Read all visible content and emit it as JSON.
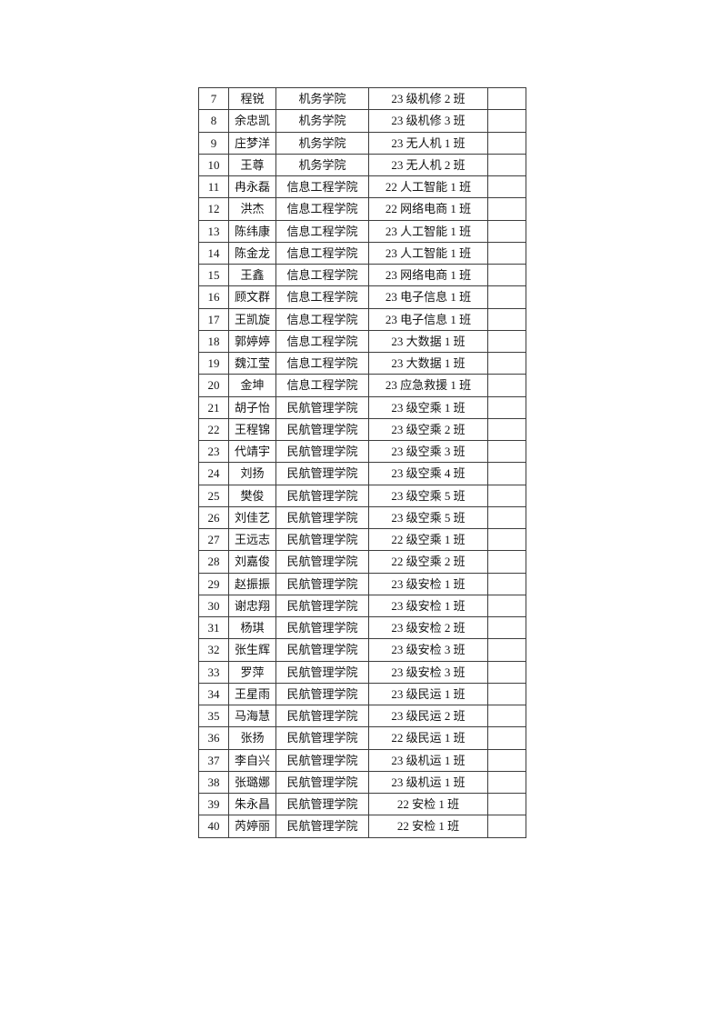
{
  "document": {
    "background_color": "#ffffff",
    "text_color": "#141414",
    "table_border_color": "#3d3d3d"
  },
  "table": {
    "columns": [
      "no",
      "name",
      "college",
      "class",
      "blank"
    ],
    "rows": [
      {
        "no": "7",
        "name": "程锐",
        "college": "机务学院",
        "class": "23 级机修 2 班",
        "blank": ""
      },
      {
        "no": "8",
        "name": "余忠凯",
        "college": "机务学院",
        "class": "23 级机修 3 班",
        "blank": ""
      },
      {
        "no": "9",
        "name": "庄梦洋",
        "college": "机务学院",
        "class": "23 无人机 1 班",
        "blank": ""
      },
      {
        "no": "10",
        "name": "王尊",
        "college": "机务学院",
        "class": "23 无人机 2 班",
        "blank": ""
      },
      {
        "no": "11",
        "name": "冉永磊",
        "college": "信息工程学院",
        "class": "22 人工智能 1 班",
        "blank": ""
      },
      {
        "no": "12",
        "name": "洪杰",
        "college": "信息工程学院",
        "class": "22 网络电商 1 班",
        "blank": ""
      },
      {
        "no": "13",
        "name": "陈纬康",
        "college": "信息工程学院",
        "class": "23 人工智能 1 班",
        "blank": ""
      },
      {
        "no": "14",
        "name": "陈金龙",
        "college": "信息工程学院",
        "class": "23 人工智能 1 班",
        "blank": ""
      },
      {
        "no": "15",
        "name": "王鑫",
        "college": "信息工程学院",
        "class": "23 网络电商 1 班",
        "blank": ""
      },
      {
        "no": "16",
        "name": "顾文群",
        "college": "信息工程学院",
        "class": "23 电子信息 1 班",
        "blank": ""
      },
      {
        "no": "17",
        "name": "王凯旋",
        "college": "信息工程学院",
        "class": "23 电子信息 1 班",
        "blank": ""
      },
      {
        "no": "18",
        "name": "郭婷婷",
        "college": "信息工程学院",
        "class": "23 大数据 1 班",
        "blank": ""
      },
      {
        "no": "19",
        "name": "魏江莹",
        "college": "信息工程学院",
        "class": "23 大数据 1 班",
        "blank": ""
      },
      {
        "no": "20",
        "name": "金坤",
        "college": "信息工程学院",
        "class": "23 应急救援 1 班",
        "blank": ""
      },
      {
        "no": "21",
        "name": "胡子怡",
        "college": "民航管理学院",
        "class": "23 级空乘 1 班",
        "blank": ""
      },
      {
        "no": "22",
        "name": "王程锦",
        "college": "民航管理学院",
        "class": "23 级空乘 2 班",
        "blank": ""
      },
      {
        "no": "23",
        "name": "代靖宇",
        "college": "民航管理学院",
        "class": "23 级空乘 3 班",
        "blank": ""
      },
      {
        "no": "24",
        "name": "刘扬",
        "college": "民航管理学院",
        "class": "23 级空乘 4 班",
        "blank": ""
      },
      {
        "no": "25",
        "name": "樊俊",
        "college": "民航管理学院",
        "class": "23 级空乘 5 班",
        "blank": ""
      },
      {
        "no": "26",
        "name": "刘佳艺",
        "college": "民航管理学院",
        "class": "23 级空乘 5 班",
        "blank": ""
      },
      {
        "no": "27",
        "name": "王远志",
        "college": "民航管理学院",
        "class": "22 级空乘 1 班",
        "blank": ""
      },
      {
        "no": "28",
        "name": "刘嘉俊",
        "college": "民航管理学院",
        "class": "22 级空乘 2 班",
        "blank": ""
      },
      {
        "no": "29",
        "name": "赵振振",
        "college": "民航管理学院",
        "class": "23 级安检 1 班",
        "blank": ""
      },
      {
        "no": "30",
        "name": "谢忠翔",
        "college": "民航管理学院",
        "class": "23 级安检 1 班",
        "blank": ""
      },
      {
        "no": "31",
        "name": "杨琪",
        "college": "民航管理学院",
        "class": "23 级安检 2 班",
        "blank": ""
      },
      {
        "no": "32",
        "name": "张生辉",
        "college": "民航管理学院",
        "class": "23 级安检 3 班",
        "blank": ""
      },
      {
        "no": "33",
        "name": "罗萍",
        "college": "民航管理学院",
        "class": "23 级安检 3 班",
        "blank": ""
      },
      {
        "no": "34",
        "name": "王星雨",
        "college": "民航管理学院",
        "class": "23 级民运 1 班",
        "blank": ""
      },
      {
        "no": "35",
        "name": "马海慧",
        "college": "民航管理学院",
        "class": "23 级民运 2 班",
        "blank": ""
      },
      {
        "no": "36",
        "name": "张扬",
        "college": "民航管理学院",
        "class": "22 级民运 1 班",
        "blank": ""
      },
      {
        "no": "37",
        "name": "李自兴",
        "college": "民航管理学院",
        "class": "23 级机运 1 班",
        "blank": ""
      },
      {
        "no": "38",
        "name": "张璐娜",
        "college": "民航管理学院",
        "class": "23 级机运 1 班",
        "blank": ""
      },
      {
        "no": "39",
        "name": "朱永昌",
        "college": "民航管理学院",
        "class": "22 安检 1 班",
        "blank": ""
      },
      {
        "no": "40",
        "name": "芮婷丽",
        "college": "民航管理学院",
        "class": "22 安检 1 班",
        "blank": ""
      }
    ]
  }
}
